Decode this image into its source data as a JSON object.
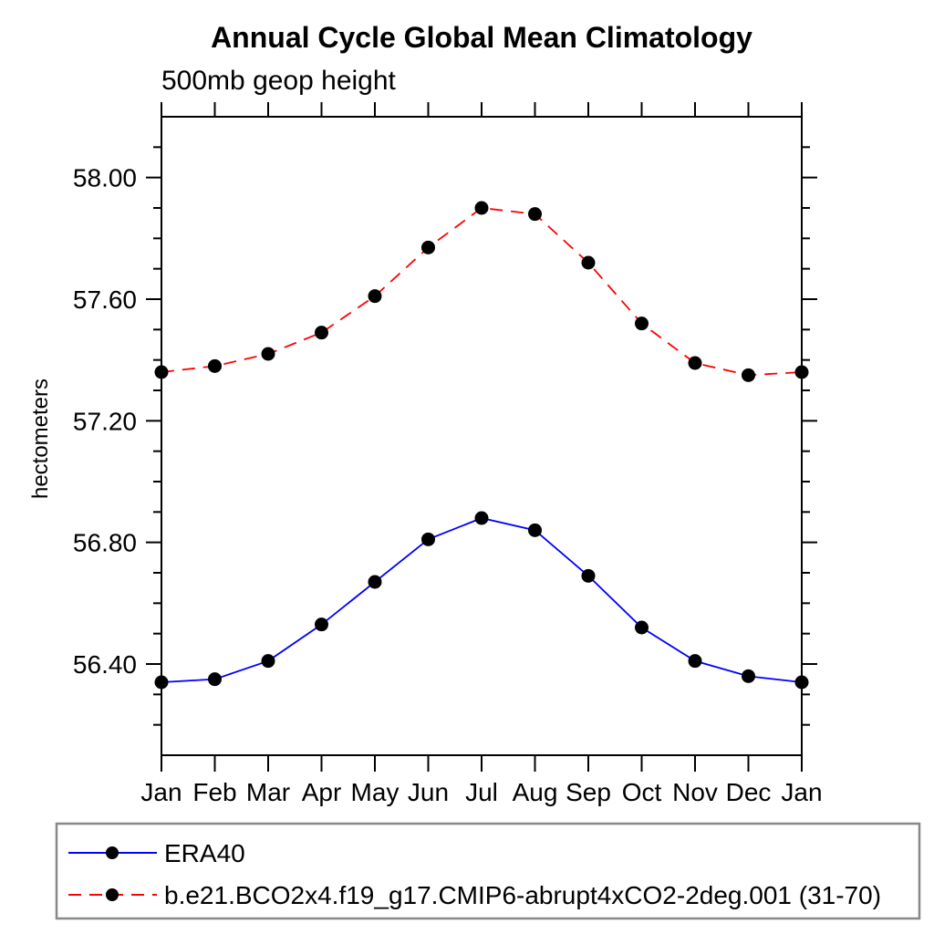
{
  "page": {
    "title": "Annual Cycle Global Mean Climatology",
    "subtitle": "500mb geop height"
  },
  "chart_data": {
    "type": "line",
    "title": "Annual Cycle Global Mean Climatology",
    "subtitle": "500mb geop height",
    "xlabel": "",
    "ylabel": "hectometers",
    "categories": [
      "Jan",
      "Feb",
      "Mar",
      "Apr",
      "May",
      "Jun",
      "Jul",
      "Aug",
      "Sep",
      "Oct",
      "Nov",
      "Dec",
      "Jan"
    ],
    "series": [
      {
        "name": "ERA40",
        "color": "#0000ff",
        "line_style": "solid",
        "marker": "filled-circle",
        "marker_color": "#000000",
        "values": [
          56.34,
          56.35,
          56.41,
          56.53,
          56.67,
          56.81,
          56.88,
          56.84,
          56.69,
          56.52,
          56.41,
          56.36,
          56.34
        ]
      },
      {
        "name": "b.e21.BCO2x4.f19_g17.CMIP6-abrupt4xCO2-2deg.001 (31-70)",
        "color": "#ff0000",
        "line_style": "dashed",
        "marker": "filled-circle",
        "marker_color": "#000000",
        "values": [
          57.36,
          57.38,
          57.42,
          57.49,
          57.61,
          57.77,
          57.9,
          57.88,
          57.72,
          57.52,
          57.39,
          57.35,
          57.36
        ]
      }
    ],
    "ylim": [
      56.1,
      58.2
    ],
    "yticks_major": [
      "58.00",
      "57.60",
      "57.20",
      "56.80",
      "56.40"
    ],
    "y_minor_interval": 0.1,
    "grid": false,
    "frame": true,
    "legend_position": "bottom-left-box"
  },
  "legend": {
    "items": [
      {
        "label": "ERA40"
      },
      {
        "label": "b.e21.BCO2x4.f19_g17.CMIP6-abrupt4xCO2-2deg.001 (31-70)"
      }
    ]
  }
}
